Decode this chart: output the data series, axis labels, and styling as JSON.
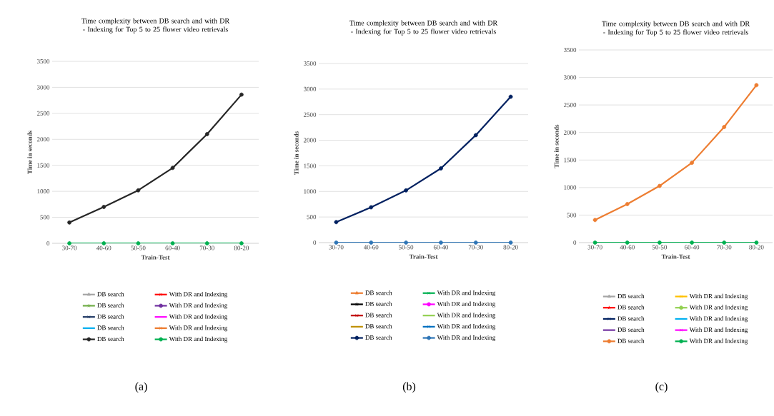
{
  "chart_data": [
    {
      "type": "line",
      "title": "Time complexity between DB search and with DR - Indexing  for Top 5 to 25 flower video retrievals",
      "xlabel": "Train-Test",
      "ylabel": "Time in seconds",
      "categories": [
        "30-70",
        "40-60",
        "50-50",
        "60-40",
        "70-30",
        "80-20"
      ],
      "ylim": [
        0,
        3500
      ],
      "yticks": [
        0,
        500,
        1000,
        1500,
        2000,
        2500,
        3000,
        3500
      ],
      "grid": "y",
      "legend": "bottom",
      "annotations": [
        "(a)"
      ],
      "series": [
        {
          "name": "DB search",
          "color": "#a5a5a5",
          "marker": "triangle",
          "values": [
            null,
            null,
            null,
            null,
            null,
            null
          ]
        },
        {
          "name": "With DR and Indexing",
          "color": "#ff0000",
          "marker": "cross",
          "values": [
            null,
            null,
            null,
            null,
            null,
            null
          ]
        },
        {
          "name": "DB search",
          "color": "#70ad47",
          "marker": "star",
          "values": [
            null,
            null,
            null,
            null,
            null,
            null
          ]
        },
        {
          "name": "With DR and Indexing",
          "color": "#7030a0",
          "marker": "circle",
          "values": [
            null,
            null,
            null,
            null,
            null,
            null
          ]
        },
        {
          "name": "DB search",
          "color": "#1f3864",
          "marker": "cross",
          "values": [
            null,
            null,
            null,
            null,
            null,
            null
          ]
        },
        {
          "name": "With DR and Indexing",
          "color": "#ff00ff",
          "marker": "none",
          "values": [
            null,
            null,
            null,
            null,
            null,
            null
          ]
        },
        {
          "name": "DB search",
          "color": "#00b0f0",
          "marker": "none",
          "values": [
            null,
            null,
            null,
            null,
            null,
            null
          ]
        },
        {
          "name": "With DR and Indexing",
          "color": "#ed7d31",
          "marker": "cross",
          "values": [
            null,
            null,
            null,
            null,
            null,
            null
          ]
        },
        {
          "name": "DB search",
          "color": "#262626",
          "marker": "circle",
          "values": [
            400,
            700,
            1020,
            1450,
            2100,
            2860
          ]
        },
        {
          "name": "With DR and Indexing",
          "color": "#00b050",
          "marker": "circle",
          "values": [
            0,
            0,
            0,
            0,
            0,
            0
          ]
        }
      ]
    },
    {
      "type": "line",
      "title": "Time complexity between DB search and with DR - Indexing  for Top 5 to 25 flower video retrievals",
      "xlabel": "Train-Test",
      "ylabel": "Time in seconds",
      "categories": [
        "30-70",
        "40-60",
        "50-50",
        "60-40",
        "70-30",
        "80-20"
      ],
      "ylim": [
        0,
        3500
      ],
      "yticks": [
        0,
        500,
        1000,
        1500,
        2000,
        2500,
        3000,
        3500
      ],
      "grid": "y",
      "legend": "bottom",
      "annotations": [
        "(b)"
      ],
      "series": [
        {
          "name": "DB search",
          "color": "#ed7d31",
          "marker": "triangle",
          "values": [
            null,
            null,
            null,
            null,
            null,
            null
          ]
        },
        {
          "name": "With DR and Indexing",
          "color": "#00b050",
          "marker": "cross",
          "values": [
            null,
            null,
            null,
            null,
            null,
            null
          ]
        },
        {
          "name": "DB search",
          "color": "#000000",
          "marker": "star",
          "values": [
            null,
            null,
            null,
            null,
            null,
            null
          ]
        },
        {
          "name": "With DR and Indexing",
          "color": "#ff00ff",
          "marker": "circle",
          "values": [
            null,
            null,
            null,
            null,
            null,
            null
          ]
        },
        {
          "name": "DB search",
          "color": "#c00000",
          "marker": "cross",
          "values": [
            null,
            null,
            null,
            null,
            null,
            null
          ]
        },
        {
          "name": "With DR and Indexing",
          "color": "#92d050",
          "marker": "none",
          "values": [
            null,
            null,
            null,
            null,
            null,
            null
          ]
        },
        {
          "name": "DB search",
          "color": "#bf9000",
          "marker": "none",
          "values": [
            null,
            null,
            null,
            null,
            null,
            null
          ]
        },
        {
          "name": "With DR and Indexing",
          "color": "#0070c0",
          "marker": "cross",
          "values": [
            null,
            null,
            null,
            null,
            null,
            null
          ]
        },
        {
          "name": "DB search",
          "color": "#002060",
          "marker": "circle",
          "values": [
            400,
            690,
            1020,
            1450,
            2100,
            2850
          ]
        },
        {
          "name": "With DR and Indexing",
          "color": "#2e75b6",
          "marker": "circle",
          "values": [
            0,
            0,
            0,
            0,
            0,
            0
          ]
        }
      ]
    },
    {
      "type": "line",
      "title": "Time complexity between DB search and with DR - Indexing  for Top 5 to 25 flower video retrievals",
      "xlabel": "Train-Test",
      "ylabel": "Time in seconds",
      "categories": [
        "30-70",
        "40-60",
        "50-50",
        "60-40",
        "70-30",
        "80-20"
      ],
      "ylim": [
        0,
        3500
      ],
      "yticks": [
        0,
        500,
        1000,
        1500,
        2000,
        2500,
        3000,
        3500
      ],
      "grid": "y",
      "legend": "bottom",
      "annotations": [
        "(c)"
      ],
      "series": [
        {
          "name": "DB search",
          "color": "#a5a5a5",
          "marker": "triangle",
          "values": [
            null,
            null,
            null,
            null,
            null,
            null
          ]
        },
        {
          "name": "With DR and Indexing",
          "color": "#ffc000",
          "marker": "cross",
          "values": [
            null,
            null,
            null,
            null,
            null,
            null
          ]
        },
        {
          "name": "DB search",
          "color": "#ff0000",
          "marker": "star",
          "values": [
            null,
            null,
            null,
            null,
            null,
            null
          ]
        },
        {
          "name": "With DR and Indexing",
          "color": "#92d050",
          "marker": "circle",
          "values": [
            null,
            null,
            null,
            null,
            null,
            null
          ]
        },
        {
          "name": "DB search",
          "color": "#002060",
          "marker": "cross",
          "values": [
            null,
            null,
            null,
            null,
            null,
            null
          ]
        },
        {
          "name": "With DR and Indexing",
          "color": "#00b0f0",
          "marker": "none",
          "values": [
            null,
            null,
            null,
            null,
            null,
            null
          ]
        },
        {
          "name": "DB search",
          "color": "#7030a0",
          "marker": "none",
          "values": [
            null,
            null,
            null,
            null,
            null,
            null
          ]
        },
        {
          "name": "With DR and Indexing",
          "color": "#ff00ff",
          "marker": "cross",
          "values": [
            null,
            null,
            null,
            null,
            null,
            null
          ]
        },
        {
          "name": "DB search",
          "color": "#ed7d31",
          "marker": "circle",
          "values": [
            410,
            700,
            1030,
            1450,
            2100,
            2860
          ]
        },
        {
          "name": "With DR and Indexing",
          "color": "#00b050",
          "marker": "circle",
          "values": [
            0,
            0,
            0,
            0,
            0,
            0
          ]
        }
      ]
    }
  ]
}
